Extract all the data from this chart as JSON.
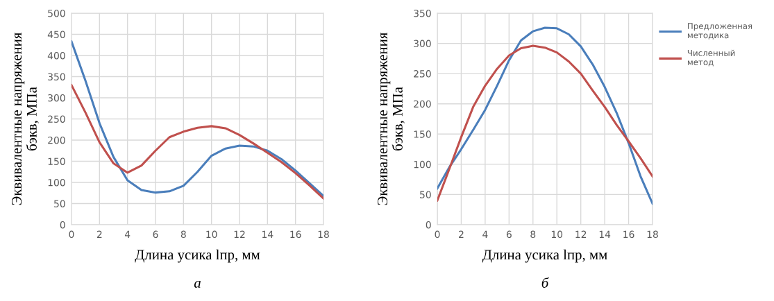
{
  "chart_data": [
    {
      "type": "line",
      "xlabel": "Длина усика lпр, мм",
      "ylabel": "Эквивалентные напряжения\nбэкв, МПа",
      "annotations": [
        "а"
      ],
      "x": [
        0,
        1,
        2,
        3,
        4,
        5,
        6,
        7,
        8,
        9,
        10,
        11,
        12,
        13,
        14,
        15,
        16,
        17,
        18
      ],
      "series": [
        {
          "color": "#4a7ebb",
          "values": [
            433,
            340,
            240,
            160,
            105,
            82,
            76,
            79,
            92,
            125,
            163,
            180,
            187,
            185,
            175,
            155,
            128,
            98,
            68
          ]
        },
        {
          "color": "#c0504d",
          "values": [
            330,
            265,
            195,
            145,
            123,
            140,
            175,
            207,
            220,
            229,
            233,
            228,
            212,
            192,
            170,
            148,
            122,
            93,
            62
          ]
        }
      ],
      "xlim": [
        0,
        18
      ],
      "xticks": [
        0,
        2,
        4,
        6,
        8,
        10,
        12,
        14,
        16,
        18
      ],
      "ylim": [
        0,
        500
      ],
      "yticks": [
        0,
        50,
        100,
        150,
        200,
        250,
        300,
        350,
        400,
        450,
        500
      ],
      "grid": true
    },
    {
      "type": "line",
      "xlabel": "Длина усика lпр, мм",
      "ylabel": "Эквивалентные напряжения\nбэкв, МПа",
      "annotations": [
        "б"
      ],
      "x": [
        0,
        1,
        2,
        3,
        4,
        5,
        6,
        7,
        8,
        9,
        10,
        11,
        12,
        13,
        14,
        15,
        16,
        17,
        18
      ],
      "series": [
        {
          "name": "Предложенная\nметодика",
          "color": "#4a7ebb",
          "values": [
            60,
            95,
            125,
            157,
            190,
            230,
            272,
            305,
            320,
            326,
            325,
            315,
            295,
            265,
            228,
            185,
            135,
            80,
            35
          ]
        },
        {
          "name": "Численный\nметод",
          "color": "#c0504d",
          "values": [
            40,
            92,
            145,
            195,
            230,
            258,
            280,
            292,
            296,
            293,
            285,
            270,
            250,
            222,
            195,
            165,
            138,
            110,
            80
          ]
        }
      ],
      "xlim": [
        0,
        18
      ],
      "xticks": [
        0,
        2,
        4,
        6,
        8,
        10,
        12,
        14,
        16,
        18
      ],
      "ylim": [
        0,
        350
      ],
      "yticks": [
        0,
        50,
        100,
        150,
        200,
        250,
        300,
        350
      ],
      "grid": true,
      "legend": "right"
    }
  ]
}
